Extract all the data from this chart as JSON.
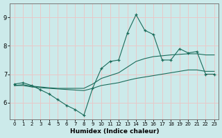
{
  "xlabel": "Humidex (Indice chaleur)",
  "xlim": [
    -0.5,
    23.5
  ],
  "ylim": [
    5.4,
    9.5
  ],
  "yticks": [
    6,
    7,
    8,
    9
  ],
  "xticks": [
    0,
    1,
    2,
    3,
    4,
    5,
    6,
    7,
    8,
    9,
    10,
    11,
    12,
    13,
    14,
    15,
    16,
    17,
    18,
    19,
    20,
    21,
    22,
    23
  ],
  "bg_color": "#cceaea",
  "line_color": "#1a6b5a",
  "grid_color": "#e8c8c8",
  "series1_x": [
    0,
    1,
    2,
    3,
    4,
    5,
    6,
    7,
    8,
    9,
    10,
    11,
    12,
    13,
    14,
    15,
    16,
    17,
    18,
    19,
    20,
    21,
    22,
    23
  ],
  "series1_y": [
    6.65,
    6.7,
    6.6,
    6.45,
    6.3,
    6.1,
    5.9,
    5.75,
    5.55,
    6.5,
    7.2,
    7.45,
    7.5,
    8.45,
    9.1,
    8.55,
    8.4,
    7.5,
    7.5,
    7.9,
    7.75,
    7.8,
    7.0,
    7.0
  ],
  "series2_x": [
    0,
    1,
    2,
    3,
    4,
    5,
    6,
    7,
    8,
    9,
    10,
    11,
    12,
    13,
    14,
    15,
    16,
    17,
    18,
    19,
    20,
    21,
    22,
    23
  ],
  "series2_y": [
    6.6,
    6.6,
    6.55,
    6.52,
    6.5,
    6.48,
    6.46,
    6.44,
    6.42,
    6.5,
    6.6,
    6.65,
    6.7,
    6.78,
    6.85,
    6.9,
    6.95,
    7.0,
    7.05,
    7.1,
    7.15,
    7.15,
    7.1,
    7.1
  ],
  "series3_x": [
    0,
    1,
    2,
    3,
    4,
    5,
    6,
    7,
    8,
    9,
    10,
    11,
    12,
    13,
    14,
    15,
    16,
    17,
    18,
    19,
    20,
    21,
    22,
    23
  ],
  "series3_y": [
    6.6,
    6.63,
    6.58,
    6.55,
    6.52,
    6.5,
    6.5,
    6.5,
    6.5,
    6.65,
    6.85,
    6.95,
    7.05,
    7.25,
    7.45,
    7.55,
    7.62,
    7.65,
    7.68,
    7.7,
    7.72,
    7.72,
    7.68,
    7.68
  ]
}
